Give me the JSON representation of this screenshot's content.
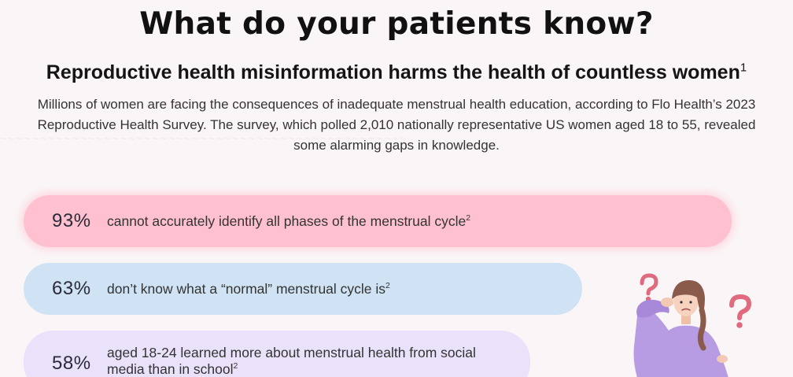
{
  "header": {
    "title": "What do your patients know?",
    "subtitle": "Reproductive health misinformation harms the health of countless women",
    "subtitle_ref": "1"
  },
  "intro": {
    "text": "Millions of women are facing the consequences of inadequate menstrual health education, according to Flo Health’s 2023 Reproductive Health Survey. The survey, which polled 2,010 nationally representative US women aged 18 to 55, revealed some alarming gaps in knowledge."
  },
  "stats": [
    {
      "percent": "93%",
      "text": "cannot accurately identify all phases of the menstrual cycle",
      "ref": "2"
    },
    {
      "percent": "63%",
      "text": "don’t know what a “normal” menstrual cycle is",
      "ref": "2"
    },
    {
      "percent": "58%",
      "text": "aged 18-24 learned more about menstrual health from social media than in school",
      "ref": "2"
    }
  ],
  "illustration": {
    "icon_names": [
      "question-mark-icon",
      "question-mark-icon"
    ],
    "colors": {
      "question_mark": "#e06a7e",
      "sweater": "#b79be3",
      "hair": "#8a5a4a"
    }
  },
  "colors": {
    "pill_1": "#ffc1cf",
    "pill_2": "#cfe3f5",
    "pill_3": "#e9e2fa",
    "background": "#faf6f7"
  }
}
